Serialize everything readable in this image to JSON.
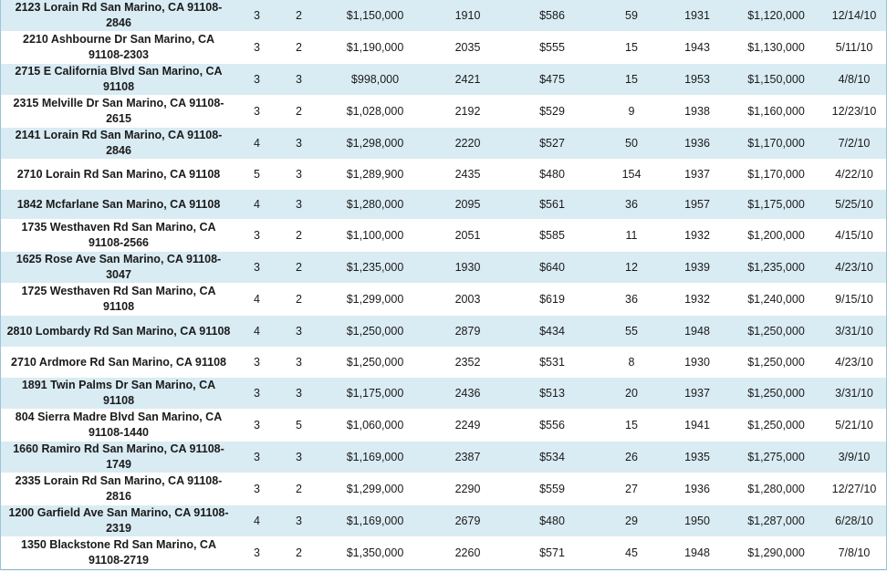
{
  "table": {
    "rows": [
      {
        "address": "2123 Lorain Rd San Marino, CA 91108-2846",
        "beds": "3",
        "baths": "2",
        "list_price": "$1,150,000",
        "sqft": "1910",
        "price_per_sqft": "$586",
        "dom": "59",
        "year_built": "1931",
        "sold_price": "$1,120,000",
        "sold_date": "12/14/10"
      },
      {
        "address": "2210 Ashbourne Dr San Marino, CA 91108-2303",
        "beds": "3",
        "baths": "2",
        "list_price": "$1,190,000",
        "sqft": "2035",
        "price_per_sqft": "$555",
        "dom": "15",
        "year_built": "1943",
        "sold_price": "$1,130,000",
        "sold_date": "5/11/10"
      },
      {
        "address": "2715 E California Blvd San Marino, CA 91108",
        "beds": "3",
        "baths": "3",
        "list_price": "$998,000",
        "sqft": "2421",
        "price_per_sqft": "$475",
        "dom": "15",
        "year_built": "1953",
        "sold_price": "$1,150,000",
        "sold_date": "4/8/10"
      },
      {
        "address": "2315 Melville Dr San Marino, CA 91108-2615",
        "beds": "3",
        "baths": "2",
        "list_price": "$1,028,000",
        "sqft": "2192",
        "price_per_sqft": "$529",
        "dom": "9",
        "year_built": "1938",
        "sold_price": "$1,160,000",
        "sold_date": "12/23/10"
      },
      {
        "address": "2141 Lorain Rd San Marino, CA 91108-2846",
        "beds": "4",
        "baths": "3",
        "list_price": "$1,298,000",
        "sqft": "2220",
        "price_per_sqft": "$527",
        "dom": "50",
        "year_built": "1936",
        "sold_price": "$1,170,000",
        "sold_date": "7/2/10"
      },
      {
        "address": "2710 Lorain Rd San Marino, CA 91108",
        "beds": "5",
        "baths": "3",
        "list_price": "$1,289,900",
        "sqft": "2435",
        "price_per_sqft": "$480",
        "dom": "154",
        "year_built": "1937",
        "sold_price": "$1,170,000",
        "sold_date": "4/22/10"
      },
      {
        "address": "1842 Mcfarlane San Marino, CA 91108",
        "beds": "4",
        "baths": "3",
        "list_price": "$1,280,000",
        "sqft": "2095",
        "price_per_sqft": "$561",
        "dom": "36",
        "year_built": "1957",
        "sold_price": "$1,175,000",
        "sold_date": "5/25/10"
      },
      {
        "address": "1735 Westhaven Rd San Marino, CA 91108-2566",
        "beds": "3",
        "baths": "2",
        "list_price": "$1,100,000",
        "sqft": "2051",
        "price_per_sqft": "$585",
        "dom": "11",
        "year_built": "1932",
        "sold_price": "$1,200,000",
        "sold_date": "4/15/10"
      },
      {
        "address": "1625 Rose Ave San Marino, CA 91108-3047",
        "beds": "3",
        "baths": "2",
        "list_price": "$1,235,000",
        "sqft": "1930",
        "price_per_sqft": "$640",
        "dom": "12",
        "year_built": "1939",
        "sold_price": "$1,235,000",
        "sold_date": "4/23/10"
      },
      {
        "address": "1725 Westhaven Rd San Marino, CA 91108",
        "beds": "4",
        "baths": "2",
        "list_price": "$1,299,000",
        "sqft": "2003",
        "price_per_sqft": "$619",
        "dom": "36",
        "year_built": "1932",
        "sold_price": "$1,240,000",
        "sold_date": "9/15/10"
      },
      {
        "address": "2810 Lombardy Rd San Marino, CA 91108",
        "beds": "4",
        "baths": "3",
        "list_price": "$1,250,000",
        "sqft": "2879",
        "price_per_sqft": "$434",
        "dom": "55",
        "year_built": "1948",
        "sold_price": "$1,250,000",
        "sold_date": "3/31/10"
      },
      {
        "address": "2710 Ardmore Rd San Marino, CA 91108",
        "beds": "3",
        "baths": "3",
        "list_price": "$1,250,000",
        "sqft": "2352",
        "price_per_sqft": "$531",
        "dom": "8",
        "year_built": "1930",
        "sold_price": "$1,250,000",
        "sold_date": "4/23/10"
      },
      {
        "address": "1891 Twin Palms Dr San Marino, CA 91108",
        "beds": "3",
        "baths": "3",
        "list_price": "$1,175,000",
        "sqft": "2436",
        "price_per_sqft": "$513",
        "dom": "20",
        "year_built": "1937",
        "sold_price": "$1,250,000",
        "sold_date": "3/31/10"
      },
      {
        "address": "804 Sierra Madre Blvd San Marino, CA 91108-1440",
        "beds": "3",
        "baths": "5",
        "list_price": "$1,060,000",
        "sqft": "2249",
        "price_per_sqft": "$556",
        "dom": "15",
        "year_built": "1941",
        "sold_price": "$1,250,000",
        "sold_date": "5/21/10"
      },
      {
        "address": "1660 Ramiro Rd San Marino, CA 91108-1749",
        "beds": "3",
        "baths": "3",
        "list_price": "$1,169,000",
        "sqft": "2387",
        "price_per_sqft": "$534",
        "dom": "26",
        "year_built": "1935",
        "sold_price": "$1,275,000",
        "sold_date": "3/9/10"
      },
      {
        "address": "2335 Lorain Rd San Marino, CA 91108-2816",
        "beds": "3",
        "baths": "2",
        "list_price": "$1,299,000",
        "sqft": "2290",
        "price_per_sqft": "$559",
        "dom": "27",
        "year_built": "1936",
        "sold_price": "$1,280,000",
        "sold_date": "12/27/10"
      },
      {
        "address": "1200 Garfield Ave San Marino, CA 91108-2319",
        "beds": "4",
        "baths": "3",
        "list_price": "$1,169,000",
        "sqft": "2679",
        "price_per_sqft": "$480",
        "dom": "29",
        "year_built": "1950",
        "sold_price": "$1,287,000",
        "sold_date": "6/28/10"
      },
      {
        "address": "1350 Blackstone Rd San Marino, CA 91108-2719",
        "beds": "3",
        "baths": "2",
        "list_price": "$1,350,000",
        "sqft": "2260",
        "price_per_sqft": "$571",
        "dom": "45",
        "year_built": "1948",
        "sold_price": "$1,290,000",
        "sold_date": "7/8/10"
      }
    ]
  }
}
